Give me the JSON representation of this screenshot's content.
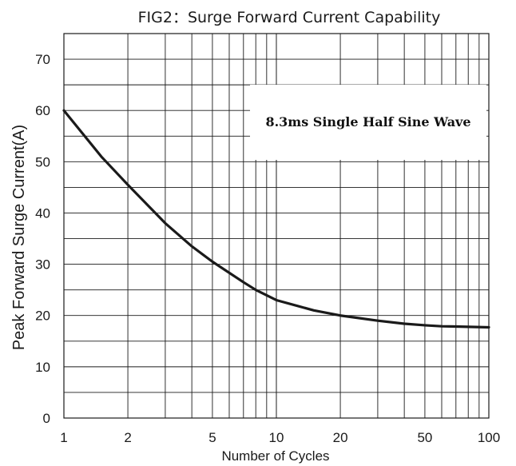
{
  "chart_data": {
    "type": "line",
    "title": "FIG2：Surge Forward Current Capability",
    "xlabel": "Number of Cycles",
    "ylabel": "Peak Forward Surge Current(A)",
    "x_scale": "log",
    "xlim": [
      1,
      100
    ],
    "ylim": [
      0,
      75
    ],
    "x_ticks": [
      1,
      2,
      5,
      10,
      20,
      50,
      100
    ],
    "x_tick_labels": [
      "1",
      "2",
      "5",
      "10",
      "20",
      "50",
      "100"
    ],
    "y_ticks": [
      0,
      10,
      20,
      30,
      40,
      50,
      60,
      70
    ],
    "y_tick_labels": [
      "0",
      "10",
      "20",
      "30",
      "40",
      "50",
      "60",
      "70"
    ],
    "grid": true,
    "annotation": "8.3ms Single Half Sine Wave",
    "series": [
      {
        "color": "#1a1a1a",
        "x": [
          1,
          1.5,
          2,
          3,
          4,
          5,
          7,
          8,
          10,
          15,
          20,
          30,
          40,
          50,
          60,
          70,
          80,
          100
        ],
        "y": [
          60,
          51,
          45.5,
          38,
          33.5,
          30.5,
          26.5,
          25,
          23,
          21,
          20,
          19,
          18.4,
          18.1,
          17.9,
          17.85,
          17.8,
          17.7
        ]
      }
    ]
  }
}
